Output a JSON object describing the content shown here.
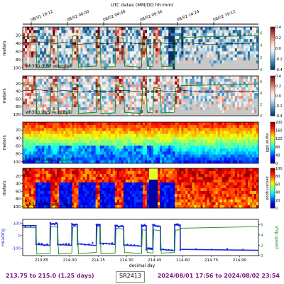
{
  "colors": {
    "heading_line": "#1f2fd1",
    "heading_points": "#1a1aff",
    "depth_line": "#148a14",
    "footer_text": "#7a1a86",
    "no_data": "#c8c8c8",
    "pg_bad": "#0a1a8c"
  },
  "top_axis": {
    "title": "UTC dates (MM/DD hh:mm)",
    "ticks": [
      "08/01 19:12",
      "08/02 00:00",
      "08/02 04:48",
      "08/02 09:36",
      "08/02 14:24",
      "08/02 19:12"
    ]
  },
  "panels": [
    {
      "label": "wh300 (E/W velocity)",
      "ylabel": "meters",
      "yticks": [
        "20",
        "40",
        "60",
        "80",
        "100"
      ],
      "colorbar": {
        "ticks": [
          "0.4",
          "0.2",
          "0.0",
          "-0.2",
          "-0.4"
        ],
        "range": [
          -0.4,
          0.4
        ],
        "cmap": "RdBu_r"
      },
      "right_axis": {
        "ticks": [
          "6",
          "4",
          "2",
          "0"
        ],
        "range": [
          0,
          7
        ]
      }
    },
    {
      "label": "wh300 (N/S velocity)",
      "ylabel": "meters",
      "yticks": [
        "20",
        "40",
        "60",
        "80",
        "100"
      ],
      "colorbar": {
        "ticks": [
          "0.4",
          "0.2",
          "0.0",
          "-0.2",
          "-0.4"
        ],
        "range": [
          -0.4,
          0.4
        ],
        "cmap": "RdBu_r"
      },
      "right_axis": {
        "ticks": [
          "6",
          "4",
          "2",
          "0"
        ],
        "range": [
          0,
          7
        ]
      }
    },
    {
      "label": "wh300 (Signal return)",
      "ylabel": "meters",
      "yticks": [
        "20",
        "40",
        "60",
        "80",
        "100"
      ],
      "colorbar": {
        "label": "signal (dB)",
        "ticks": [
          "200",
          "160",
          "120",
          "80",
          "40",
          "0"
        ],
        "range": [
          0,
          200
        ],
        "cmap": "jet"
      }
    },
    {
      "label": "wh300 (Percent Good)",
      "ylabel": "meters",
      "yticks": [
        "20",
        "40",
        "60",
        "80",
        "100"
      ],
      "colorbar": {
        "label": "percent good",
        "ticks": [
          "100",
          "80",
          "60",
          "40",
          "20",
          "0"
        ],
        "range": [
          0,
          100
        ],
        "cmap": "jet"
      }
    }
  ],
  "bottom_panel": {
    "ylabel_left": "Heading",
    "ylabel_right": "ship speed",
    "yticks_left": [
      "100",
      "0",
      "-100"
    ],
    "yticks_right": [
      "6",
      "4",
      "2",
      "0"
    ],
    "xlabel": "decimal day"
  },
  "chart_data": {
    "type": "line",
    "x_range": [
      213.75,
      215.0
    ],
    "x_ticks": [
      213.85,
      214.0,
      214.15,
      214.3,
      214.45,
      214.6,
      214.75,
      214.9
    ],
    "x_tick_labels": [
      "213.85",
      "214.00",
      "214.15",
      "214.30",
      "214.45",
      "214.60",
      "214.75",
      "214.90"
    ],
    "heading": {
      "ylim": [
        -160,
        130
      ],
      "x": [
        213.75,
        213.82,
        213.821,
        213.895,
        213.896,
        213.935,
        213.936,
        214.01,
        214.011,
        214.04,
        214.041,
        214.14,
        214.141,
        214.16,
        214.161,
        214.24,
        214.241,
        214.285,
        214.286,
        214.38,
        214.381,
        214.405,
        214.406,
        214.44,
        214.441,
        214.48,
        214.481,
        214.555,
        214.556,
        214.585,
        214.586,
        215.0
      ],
      "y": [
        80,
        80,
        -70,
        -78,
        95,
        95,
        -70,
        -78,
        90,
        90,
        -65,
        -80,
        90,
        90,
        -60,
        -70,
        75,
        75,
        -75,
        -85,
        80,
        80,
        -105,
        -110,
        80,
        75,
        -110,
        -120,
        85,
        85,
        -110,
        -118
      ]
    },
    "speed": {
      "ylim": [
        0,
        7
      ],
      "x": [
        213.75,
        213.82,
        213.825,
        213.895,
        213.9,
        213.935,
        213.94,
        214.01,
        214.015,
        214.04,
        214.045,
        214.14,
        214.145,
        214.16,
        214.165,
        214.24,
        214.245,
        214.285,
        214.29,
        214.38,
        214.385,
        214.405,
        214.41,
        214.44,
        214.445,
        214.48,
        214.485,
        214.555,
        214.56,
        214.585,
        214.59,
        215.0
      ],
      "y": [
        5.4,
        5.4,
        0.3,
        0.4,
        5.6,
        5.5,
        0.3,
        0.5,
        5.5,
        5.6,
        0.4,
        0.6,
        5.7,
        5.5,
        0.4,
        0.5,
        5.3,
        5.1,
        0.6,
        0.4,
        5.0,
        4.9,
        0.6,
        0.5,
        5.0,
        4.8,
        0.5,
        0.6,
        4.9,
        5.0,
        5.3,
        5.6
      ]
    }
  },
  "footer": {
    "range_text": "213.75 to 215.0 (1.25 days)",
    "cruise": "SR2413",
    "time_range": "2024/08/01 17:56 to 2024/08/02 23:54"
  }
}
